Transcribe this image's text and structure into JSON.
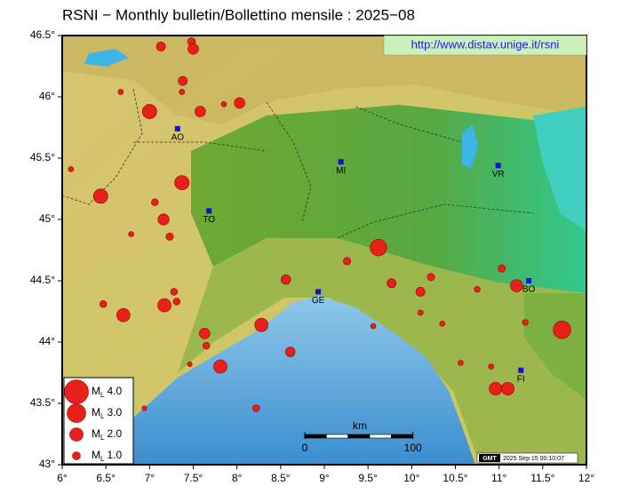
{
  "title": "RSNI − Monthly bulletin/Bollettino mensile : 2025−08",
  "url": "http://www.distav.unige.it/rsni",
  "xlim": [
    6,
    12
  ],
  "ylim": [
    43,
    46.5
  ],
  "xticks": [
    {
      "value": 6,
      "label": "6°"
    },
    {
      "value": 6.5,
      "label": "6.5°"
    },
    {
      "value": 7,
      "label": "7°"
    },
    {
      "value": 7.5,
      "label": "7.5°"
    },
    {
      "value": 8,
      "label": "8°"
    },
    {
      "value": 8.5,
      "label": "8.5°"
    },
    {
      "value": 9,
      "label": "9°"
    },
    {
      "value": 9.5,
      "label": "9.5°"
    },
    {
      "value": 10,
      "label": "10°"
    },
    {
      "value": 10.5,
      "label": "10.5°"
    },
    {
      "value": 11,
      "label": "11°"
    },
    {
      "value": 11.5,
      "label": "11.5°"
    },
    {
      "value": 12,
      "label": "12°"
    }
  ],
  "yticks": [
    {
      "value": 43,
      "label": "43°"
    },
    {
      "value": 43.5,
      "label": "43.5°"
    },
    {
      "value": 44,
      "label": "44°"
    },
    {
      "value": 44.5,
      "label": "44.5°"
    },
    {
      "value": 45,
      "label": "45°"
    },
    {
      "value": 45.5,
      "label": "45.5°"
    },
    {
      "value": 46,
      "label": "46°"
    },
    {
      "value": 46.5,
      "label": "46.5°"
    }
  ],
  "cities": [
    {
      "name": "AO",
      "lon": 7.32,
      "lat": 45.74
    },
    {
      "name": "TO",
      "lon": 7.68,
      "lat": 45.07
    },
    {
      "name": "MI",
      "lon": 9.19,
      "lat": 45.47
    },
    {
      "name": "VR",
      "lon": 10.99,
      "lat": 45.44
    },
    {
      "name": "GE",
      "lon": 8.93,
      "lat": 44.41
    },
    {
      "name": "BO",
      "lon": 11.34,
      "lat": 44.5
    },
    {
      "name": "FI",
      "lon": 11.25,
      "lat": 43.77
    }
  ],
  "events": [
    {
      "lon": 7.13,
      "lat": 46.41,
      "mag": 1.2
    },
    {
      "lon": 7.48,
      "lat": 46.45,
      "mag": 1.0
    },
    {
      "lon": 7.5,
      "lat": 46.39,
      "mag": 1.5
    },
    {
      "lon": 7.38,
      "lat": 46.13,
      "mag": 1.2
    },
    {
      "lon": 7.37,
      "lat": 46.04,
      "mag": 0.5
    },
    {
      "lon": 6.67,
      "lat": 46.04,
      "mag": 0.5
    },
    {
      "lon": 7.0,
      "lat": 45.88,
      "mag": 2.2
    },
    {
      "lon": 7.58,
      "lat": 45.88,
      "mag": 1.5
    },
    {
      "lon": 8.03,
      "lat": 45.95,
      "mag": 1.5
    },
    {
      "lon": 7.85,
      "lat": 45.94,
      "mag": 0.5
    },
    {
      "lon": 6.1,
      "lat": 45.41,
      "mag": 0.5
    },
    {
      "lon": 6.44,
      "lat": 45.19,
      "mag": 2.2
    },
    {
      "lon": 7.37,
      "lat": 45.3,
      "mag": 2.2
    },
    {
      "lon": 7.06,
      "lat": 45.14,
      "mag": 0.8
    },
    {
      "lon": 7.16,
      "lat": 45.0,
      "mag": 1.6
    },
    {
      "lon": 7.23,
      "lat": 44.86,
      "mag": 0.9
    },
    {
      "lon": 6.79,
      "lat": 44.88,
      "mag": 0.5
    },
    {
      "lon": 6.47,
      "lat": 44.31,
      "mag": 0.8
    },
    {
      "lon": 6.7,
      "lat": 44.22,
      "mag": 2.0
    },
    {
      "lon": 7.17,
      "lat": 44.3,
      "mag": 2.0
    },
    {
      "lon": 7.31,
      "lat": 44.33,
      "mag": 0.8
    },
    {
      "lon": 7.28,
      "lat": 44.41,
      "mag": 0.8
    },
    {
      "lon": 7.63,
      "lat": 44.07,
      "mag": 1.5
    },
    {
      "lon": 7.65,
      "lat": 43.97,
      "mag": 0.8
    },
    {
      "lon": 7.81,
      "lat": 43.8,
      "mag": 2.0
    },
    {
      "lon": 8.28,
      "lat": 44.14,
      "mag": 2.0
    },
    {
      "lon": 8.61,
      "lat": 43.92,
      "mag": 1.3
    },
    {
      "lon": 8.22,
      "lat": 43.46,
      "mag": 0.8
    },
    {
      "lon": 6.94,
      "lat": 43.46,
      "mag": 0.4
    },
    {
      "lon": 7.46,
      "lat": 43.82,
      "mag": 0.4
    },
    {
      "lon": 8.56,
      "lat": 44.51,
      "mag": 1.3
    },
    {
      "lon": 9.26,
      "lat": 44.66,
      "mag": 0.9
    },
    {
      "lon": 9.62,
      "lat": 44.77,
      "mag": 2.6
    },
    {
      "lon": 9.77,
      "lat": 44.48,
      "mag": 1.2
    },
    {
      "lon": 10.1,
      "lat": 44.41,
      "mag": 1.2
    },
    {
      "lon": 10.22,
      "lat": 44.53,
      "mag": 0.9
    },
    {
      "lon": 10.75,
      "lat": 44.43,
      "mag": 0.6
    },
    {
      "lon": 11.03,
      "lat": 44.6,
      "mag": 0.9
    },
    {
      "lon": 11.2,
      "lat": 44.46,
      "mag": 1.8
    },
    {
      "lon": 11.3,
      "lat": 44.16,
      "mag": 0.6
    },
    {
      "lon": 11.72,
      "lat": 44.1,
      "mag": 2.8
    },
    {
      "lon": 10.35,
      "lat": 44.15,
      "mag": 0.5
    },
    {
      "lon": 10.1,
      "lat": 44.24,
      "mag": 0.5
    },
    {
      "lon": 10.96,
      "lat": 43.62,
      "mag": 1.9
    },
    {
      "lon": 11.1,
      "lat": 43.62,
      "mag": 1.9
    },
    {
      "lon": 10.91,
      "lat": 43.8,
      "mag": 0.5
    },
    {
      "lon": 10.56,
      "lat": 43.83,
      "mag": 0.5
    },
    {
      "lon": 9.56,
      "lat": 44.13,
      "mag": 0.5
    }
  ],
  "legend": {
    "symbol": "M",
    "subscript": "L",
    "items": [
      {
        "value": 4,
        "label": "4.0"
      },
      {
        "value": 3,
        "label": "3.0"
      },
      {
        "value": 2,
        "label": "2.0"
      },
      {
        "value": 1,
        "label": "1.0"
      }
    ]
  },
  "scale": {
    "unit": "km",
    "ticks": [
      0,
      100
    ]
  },
  "stamp": {
    "logo": "GMT",
    "text": "2025 Sep 15 00:10:07"
  }
}
